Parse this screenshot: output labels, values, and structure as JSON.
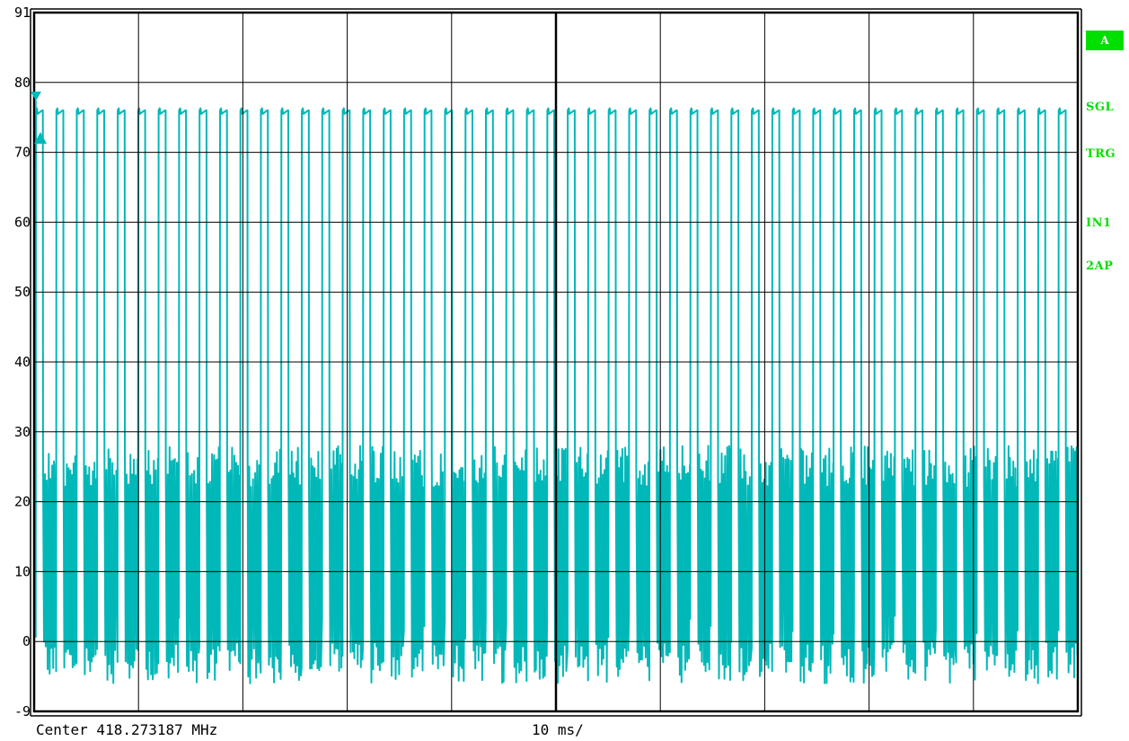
{
  "side_labels": {
    "badge": "A",
    "sgl": "SGL",
    "trg": "TRG",
    "in1": "IN1",
    "ap2": "2AP"
  },
  "footer": {
    "center": "Center 418.273187 MHz",
    "sweep": "10 ms/"
  },
  "colors": {
    "trace": "#00b8b8",
    "grid": "#000000",
    "labels": "#00e000"
  },
  "chart_data": {
    "type": "line",
    "y_tick_labels": [
      "91",
      "80",
      "70",
      "60",
      "50",
      "40",
      "30",
      "20",
      "10",
      "0",
      "-9"
    ],
    "ylim": [
      -9,
      91
    ],
    "x_divisions": 10,
    "x_unit_per_division": "10 ms/",
    "xlim_ms": [
      0,
      100
    ],
    "grid": true,
    "series": [
      {
        "pattern": "pulsed burst, repeating",
        "pulse_count": 51,
        "pulse_period_ms": 1.96,
        "pulse_high_level": 77,
        "noise_floor_range": [
          -5,
          31
        ]
      }
    ]
  }
}
